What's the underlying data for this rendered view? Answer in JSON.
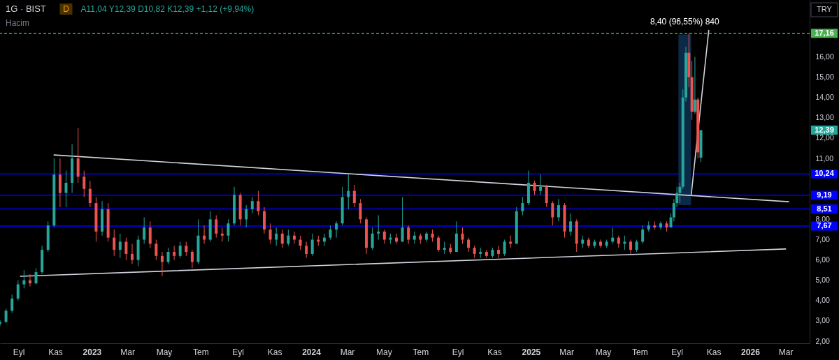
{
  "chart_data": {
    "type": "candlestick",
    "title": "1G · BIST",
    "subtitle": "A11,04 Y12,39 D10,82 K12,39 +1,12 (+9,94%)",
    "annotations": [
      "Hacim",
      "D",
      "TRY",
      "12,39"
    ],
    "x": [
      "2022-08-01",
      "2022-08-11",
      "2022-08-21",
      "2022-08-31",
      "2022-09-10",
      "2022-09-20",
      "2022-09-30",
      "2022-10-10",
      "2022-10-20",
      "2022-10-30",
      "2022-11-09",
      "2022-11-19",
      "2022-11-29",
      "2022-12-09",
      "2022-12-19",
      "2022-12-29",
      "2023-01-08",
      "2023-01-18",
      "2023-01-28",
      "2023-02-07",
      "2023-02-17",
      "2023-02-27",
      "2023-03-09",
      "2023-03-19",
      "2023-03-29",
      "2023-04-08",
      "2023-04-18",
      "2023-04-28",
      "2023-05-08",
      "2023-05-18",
      "2023-05-28",
      "2023-06-07",
      "2023-06-17",
      "2023-06-27",
      "2023-07-07",
      "2023-07-17",
      "2023-07-27",
      "2023-08-06",
      "2023-08-16",
      "2023-08-26",
      "2023-09-05",
      "2023-09-15",
      "2023-09-25",
      "2023-10-05",
      "2023-10-15",
      "2023-10-25",
      "2023-11-04",
      "2023-11-14",
      "2023-11-24",
      "2023-12-04",
      "2023-12-14",
      "2023-12-24",
      "2024-01-03",
      "2024-01-13",
      "2024-01-23",
      "2024-02-02",
      "2024-02-12",
      "2024-02-22",
      "2024-03-03",
      "2024-03-13",
      "2024-03-23",
      "2024-04-02",
      "2024-04-12",
      "2024-04-22",
      "2024-05-02",
      "2024-05-12",
      "2024-05-22",
      "2024-06-01",
      "2024-06-11",
      "2024-06-21",
      "2024-07-01",
      "2024-07-11",
      "2024-07-21",
      "2024-07-31",
      "2024-08-10",
      "2024-08-20",
      "2024-08-30",
      "2024-09-09",
      "2024-09-19",
      "2024-09-29",
      "2024-10-09",
      "2024-10-19",
      "2024-10-29",
      "2024-11-08",
      "2024-11-18",
      "2024-11-28",
      "2024-12-08",
      "2024-12-18",
      "2024-12-28",
      "2025-01-07",
      "2025-01-17",
      "2025-01-27",
      "2025-02-06",
      "2025-02-16",
      "2025-02-26",
      "2025-03-08",
      "2025-03-18",
      "2025-03-28",
      "2025-04-07",
      "2025-04-17",
      "2025-04-27",
      "2025-05-07",
      "2025-05-17",
      "2025-05-27",
      "2025-06-06",
      "2025-06-16",
      "2025-06-26",
      "2025-07-06",
      "2025-07-16",
      "2025-07-26",
      "2025-08-05",
      "2025-08-15",
      "2025-08-22",
      "2025-08-27",
      "2025-09-01",
      "2025-09-06",
      "2025-09-11",
      "2025-09-16",
      "2025-09-21",
      "2025-09-26",
      "2025-10-01",
      "2025-10-06",
      "2025-10-11"
    ],
    "ohlc": [
      [
        2.85,
        3.05,
        2.75,
        2.95
      ],
      [
        2.95,
        3.6,
        2.9,
        3.5
      ],
      [
        3.5,
        4.3,
        3.4,
        4.1
      ],
      [
        4.1,
        5.0,
        4.0,
        4.8
      ],
      [
        4.8,
        5.5,
        4.6,
        5.0
      ],
      [
        5.0,
        5.3,
        4.7,
        4.85
      ],
      [
        4.85,
        5.6,
        4.8,
        5.4
      ],
      [
        5.4,
        6.7,
        5.3,
        6.5
      ],
      [
        6.5,
        7.9,
        6.4,
        7.7
      ],
      [
        7.7,
        11.0,
        7.6,
        10.2
      ],
      [
        10.2,
        11.0,
        8.6,
        9.3
      ],
      [
        9.3,
        10.4,
        8.6,
        9.8
      ],
      [
        9.8,
        11.7,
        9.3,
        11.0
      ],
      [
        11.0,
        12.5,
        9.8,
        10.1
      ],
      [
        10.1,
        10.4,
        9.1,
        9.5
      ],
      [
        9.5,
        9.9,
        8.6,
        8.8
      ],
      [
        8.8,
        9.1,
        6.9,
        7.4
      ],
      [
        7.4,
        8.9,
        7.2,
        8.5
      ],
      [
        8.5,
        8.8,
        6.9,
        7.1
      ],
      [
        7.1,
        7.5,
        6.2,
        6.5
      ],
      [
        6.5,
        7.3,
        6.1,
        6.9
      ],
      [
        6.9,
        7.1,
        6.0,
        6.3
      ],
      [
        6.3,
        6.8,
        5.8,
        6.0
      ],
      [
        6.0,
        7.2,
        5.7,
        7.0
      ],
      [
        7.0,
        8.1,
        6.8,
        7.6
      ],
      [
        7.6,
        7.9,
        6.6,
        6.8
      ],
      [
        6.8,
        7.0,
        6.0,
        6.2
      ],
      [
        6.2,
        6.4,
        5.2,
        5.9
      ],
      [
        5.9,
        6.6,
        5.8,
        6.4
      ],
      [
        6.4,
        6.7,
        6.0,
        6.2
      ],
      [
        6.2,
        6.9,
        6.1,
        6.7
      ],
      [
        6.7,
        6.9,
        6.2,
        6.4
      ],
      [
        6.4,
        6.5,
        5.6,
        5.9
      ],
      [
        5.9,
        8.0,
        5.8,
        7.2
      ],
      [
        7.2,
        7.7,
        6.8,
        7.0
      ],
      [
        7.0,
        8.4,
        6.9,
        8.0
      ],
      [
        8.0,
        8.2,
        7.1,
        7.3
      ],
      [
        7.3,
        7.6,
        6.9,
        7.2
      ],
      [
        7.2,
        8.0,
        6.9,
        7.8
      ],
      [
        7.8,
        9.6,
        7.7,
        9.2
      ],
      [
        9.2,
        9.3,
        7.7,
        8.0
      ],
      [
        8.0,
        8.7,
        7.6,
        8.5
      ],
      [
        8.5,
        9.1,
        8.3,
        8.9
      ],
      [
        8.9,
        9.4,
        8.2,
        8.4
      ],
      [
        8.4,
        8.6,
        7.3,
        7.5
      ],
      [
        7.5,
        7.8,
        6.8,
        7.0
      ],
      [
        7.0,
        7.6,
        6.7,
        7.3
      ],
      [
        7.3,
        7.5,
        6.6,
        6.8
      ],
      [
        6.8,
        7.5,
        6.7,
        7.2
      ],
      [
        7.2,
        7.4,
        6.8,
        7.0
      ],
      [
        7.0,
        7.2,
        6.5,
        6.7
      ],
      [
        6.7,
        6.9,
        6.1,
        6.3
      ],
      [
        6.3,
        7.3,
        6.2,
        7.0
      ],
      [
        7.0,
        7.2,
        6.7,
        6.9
      ],
      [
        6.9,
        7.3,
        6.7,
        7.1
      ],
      [
        7.1,
        7.7,
        7.0,
        7.5
      ],
      [
        7.5,
        7.9,
        7.1,
        7.8
      ],
      [
        7.8,
        9.6,
        7.7,
        9.1
      ],
      [
        9.1,
        10.2,
        8.5,
        9.4
      ],
      [
        9.4,
        9.7,
        8.6,
        8.8
      ],
      [
        8.8,
        9.0,
        7.8,
        8.0
      ],
      [
        8.0,
        8.1,
        6.3,
        6.6
      ],
      [
        6.6,
        7.6,
        6.5,
        7.3
      ],
      [
        7.3,
        8.2,
        7.0,
        7.4
      ],
      [
        7.4,
        7.5,
        6.8,
        7.0
      ],
      [
        7.0,
        7.3,
        6.8,
        7.1
      ],
      [
        7.1,
        7.3,
        6.8,
        6.9
      ],
      [
        6.9,
        9.1,
        6.9,
        7.6
      ],
      [
        7.6,
        7.7,
        6.8,
        7.0
      ],
      [
        7.0,
        7.4,
        6.8,
        7.2
      ],
      [
        7.2,
        7.3,
        6.8,
        7.0
      ],
      [
        7.0,
        7.4,
        6.9,
        7.3
      ],
      [
        7.3,
        7.5,
        6.9,
        7.1
      ],
      [
        7.1,
        7.2,
        6.4,
        6.5
      ],
      [
        6.5,
        6.9,
        6.3,
        6.6
      ],
      [
        6.6,
        6.8,
        6.3,
        6.4
      ],
      [
        6.4,
        7.9,
        6.4,
        7.3
      ],
      [
        7.3,
        7.6,
        6.8,
        7.0
      ],
      [
        7.0,
        7.1,
        6.4,
        6.6
      ],
      [
        6.6,
        6.7,
        6.1,
        6.3
      ],
      [
        6.3,
        6.6,
        6.1,
        6.4
      ],
      [
        6.4,
        6.5,
        6.1,
        6.2
      ],
      [
        6.2,
        6.6,
        6.1,
        6.5
      ],
      [
        6.5,
        6.7,
        6.1,
        6.3
      ],
      [
        6.3,
        7.0,
        6.2,
        6.9
      ],
      [
        6.9,
        7.2,
        6.6,
        6.8
      ],
      [
        6.8,
        8.6,
        6.8,
        8.4
      ],
      [
        8.4,
        9.1,
        8.2,
        8.8
      ],
      [
        8.8,
        10.4,
        8.7,
        9.8
      ],
      [
        9.8,
        9.9,
        9.2,
        9.4
      ],
      [
        9.4,
        10.2,
        9.2,
        9.6
      ],
      [
        9.6,
        9.7,
        8.6,
        8.8
      ],
      [
        8.8,
        8.9,
        7.7,
        8.1
      ],
      [
        8.1,
        9.0,
        7.9,
        8.7
      ],
      [
        8.7,
        8.8,
        7.1,
        7.4
      ],
      [
        7.4,
        8.3,
        7.2,
        7.9
      ],
      [
        7.9,
        8.0,
        6.4,
        6.8
      ],
      [
        6.8,
        7.2,
        6.6,
        7.0
      ],
      [
        7.0,
        7.1,
        6.6,
        6.7
      ],
      [
        6.7,
        7.0,
        6.6,
        6.9
      ],
      [
        6.9,
        7.0,
        6.6,
        6.7
      ],
      [
        6.7,
        7.0,
        6.6,
        6.9
      ],
      [
        6.9,
        7.6,
        6.8,
        7.1
      ],
      [
        7.1,
        7.2,
        6.6,
        6.8
      ],
      [
        6.8,
        7.2,
        6.5,
        6.9
      ],
      [
        6.9,
        7.0,
        6.3,
        6.5
      ],
      [
        6.5,
        7.0,
        6.4,
        6.9
      ],
      [
        6.9,
        7.7,
        6.8,
        7.5
      ],
      [
        7.5,
        7.9,
        7.4,
        7.7
      ],
      [
        7.7,
        7.9,
        7.5,
        7.6
      ],
      [
        7.6,
        7.9,
        7.5,
        7.8
      ],
      [
        7.8,
        7.9,
        7.4,
        7.6
      ],
      [
        7.6,
        8.3,
        7.6,
        8.1
      ],
      [
        8.1,
        9.0,
        7.9,
        8.8
      ],
      [
        8.8,
        9.6,
        8.6,
        9.3
      ],
      [
        9.3,
        9.8,
        8.8,
        9.6
      ],
      [
        9.6,
        14.4,
        9.5,
        14.0
      ],
      [
        14.0,
        16.5,
        13.8,
        16.2
      ],
      [
        16.2,
        17.16,
        14.5,
        15.0
      ],
      [
        15.0,
        15.8,
        12.9,
        13.3
      ],
      [
        13.3,
        16.0,
        13.2,
        13.9
      ],
      [
        13.9,
        14.0,
        11.0,
        11.3
      ],
      [
        11.04,
        12.39,
        10.82,
        12.39
      ]
    ],
    "colors": [
      "#26a69a",
      "#26a69a",
      "#26a69a",
      "#26a69a",
      "#26a69a",
      "#ef5350",
      "#26a69a",
      "#26a69a",
      "#26a69a",
      "#26a69a",
      "#ef5350",
      "#26a69a",
      "#26a69a",
      "#ef5350",
      "#ef5350",
      "#ef5350",
      "#ef5350",
      "#26a69a",
      "#ef5350",
      "#ef5350",
      "#26a69a",
      "#ef5350",
      "#ef5350",
      "#26a69a",
      "#26a69a",
      "#ef5350",
      "#ef5350",
      "#ef5350",
      "#26a69a",
      "#ef5350",
      "#26a69a",
      "#ef5350",
      "#ef5350",
      "#26a69a",
      "#ef5350",
      "#26a69a",
      "#ef5350",
      "#ef5350",
      "#26a69a",
      "#26a69a",
      "#ef5350",
      "#26a69a",
      "#26a69a",
      "#ef5350",
      "#ef5350",
      "#ef5350",
      "#26a69a",
      "#ef5350",
      "#26a69a",
      "#ef5350",
      "#ef5350",
      "#ef5350",
      "#26a69a",
      "#ef5350",
      "#26a69a",
      "#26a69a",
      "#26a69a",
      "#26a69a",
      "#26a69a",
      "#ef5350",
      "#ef5350",
      "#ef5350",
      "#26a69a",
      "#26a69a",
      "#ef5350",
      "#26a69a",
      "#ef5350",
      "#26a69a",
      "#ef5350",
      "#26a69a",
      "#ef5350",
      "#26a69a",
      "#ef5350",
      "#ef5350",
      "#26a69a",
      "#ef5350",
      "#26a69a",
      "#ef5350",
      "#ef5350",
      "#ef5350",
      "#26a69a",
      "#ef5350",
      "#26a69a",
      "#ef5350",
      "#26a69a",
      "#ef5350",
      "#26a69a",
      "#26a69a",
      "#26a69a",
      "#ef5350",
      "#26a69a",
      "#ef5350",
      "#ef5350",
      "#26a69a",
      "#ef5350",
      "#26a69a",
      "#ef5350",
      "#26a69a",
      "#ef5350",
      "#26a69a",
      "#ef5350",
      "#26a69a",
      "#26a69a",
      "#ef5350",
      "#26a69a",
      "#ef5350",
      "#26a69a",
      "#26a69a",
      "#26a69a",
      "#ef5350",
      "#26a69a",
      "#ef5350",
      "#26a69a",
      "#26a69a",
      "#26a69a",
      "#26a69a",
      "#26a69a",
      "#26a69a",
      "#ef5350",
      "#ef5350",
      "#26a69a",
      "#ef5350",
      "#26a69a"
    ],
    "series": [
      {
        "type": "bar",
        "x": [
          "2025-09-14"
        ],
        "base": [
          8.7
        ],
        "values": [
          8.4
        ],
        "color": "#0c2a47",
        "value_labels": [
          "8,40 (96,55%) 840"
        ]
      },
      {
        "type": "line",
        "x": [
          "2022-10-30",
          "2026-03-06"
        ],
        "values": [
          11.17,
          8.87
        ],
        "color": "#d1d4dc"
      },
      {
        "type": "line",
        "x": [
          "2022-09-04",
          "2026-03-01"
        ],
        "values": [
          5.2,
          6.54
        ],
        "color": "#d1d4dc"
      },
      {
        "type": "line",
        "x": [
          "2025-09-25",
          "2025-10-24"
        ],
        "values": [
          9.24,
          17.3
        ],
        "color": "#d1d4dc"
      }
    ],
    "ref_lines": [
      {
        "axis": "y",
        "value": 17.16,
        "label": "17,16",
        "color": "#4caf50",
        "line_style": "dashed"
      },
      {
        "axis": "y",
        "value": 10.24,
        "label": "10,24",
        "color": "#0000ff"
      },
      {
        "axis": "y",
        "value": 9.19,
        "label": "9,19",
        "color": "#0000ff"
      },
      {
        "axis": "y",
        "value": 8.51,
        "label": "8,51",
        "color": "#0000ff"
      },
      {
        "axis": "y",
        "value": 7.67,
        "label": "7,67",
        "color": "#0000ff"
      }
    ],
    "xlim": [
      "2022-08-01",
      "2026-04-10"
    ],
    "xticks": [
      {
        "value": "2022-09-01",
        "label": "Eyl"
      },
      {
        "value": "2022-11-01",
        "label": "Kas"
      },
      {
        "value": "2023-01-01",
        "label": "2023"
      },
      {
        "value": "2023-03-01",
        "label": "Mar"
      },
      {
        "value": "2023-05-01",
        "label": "May"
      },
      {
        "value": "2023-07-01",
        "label": "Tem"
      },
      {
        "value": "2023-09-01",
        "label": "Eyl"
      },
      {
        "value": "2023-11-01",
        "label": "Kas"
      },
      {
        "value": "2024-01-01",
        "label": "2024"
      },
      {
        "value": "2024-03-01",
        "label": "Mar"
      },
      {
        "value": "2024-05-01",
        "label": "May"
      },
      {
        "value": "2024-07-01",
        "label": "Tem"
      },
      {
        "value": "2024-09-01",
        "label": "Eyl"
      },
      {
        "value": "2024-11-01",
        "label": "Kas"
      },
      {
        "value": "2025-01-01",
        "label": "2025"
      },
      {
        "value": "2025-03-01",
        "label": "Mar"
      },
      {
        "value": "2025-05-01",
        "label": "May"
      },
      {
        "value": "2025-07-01",
        "label": "Tem"
      },
      {
        "value": "2025-09-01",
        "label": "Eyl"
      },
      {
        "value": "2025-11-01",
        "label": "Kas"
      },
      {
        "value": "2026-01-01",
        "label": "2026"
      },
      {
        "value": "2026-03-01",
        "label": "Mar"
      }
    ],
    "ylim": [
      1.9,
      18.8
    ],
    "yticks": [
      {
        "value": 2,
        "label": "2,00"
      },
      {
        "value": 3,
        "label": "3,00"
      },
      {
        "value": 4,
        "label": "4,00"
      },
      {
        "value": 5,
        "label": "5,00"
      },
      {
        "value": 6,
        "label": "6,00"
      },
      {
        "value": 7,
        "label": "7,00"
      },
      {
        "value": 8,
        "label": "8,00"
      },
      {
        "value": 11,
        "label": "11,00"
      },
      {
        "value": 12,
        "label": "12,00"
      },
      {
        "value": 13,
        "label": "13,00"
      },
      {
        "value": 14,
        "label": "14,00"
      },
      {
        "value": 15,
        "label": "15,00"
      },
      {
        "value": 16,
        "label": "16,00"
      }
    ]
  }
}
